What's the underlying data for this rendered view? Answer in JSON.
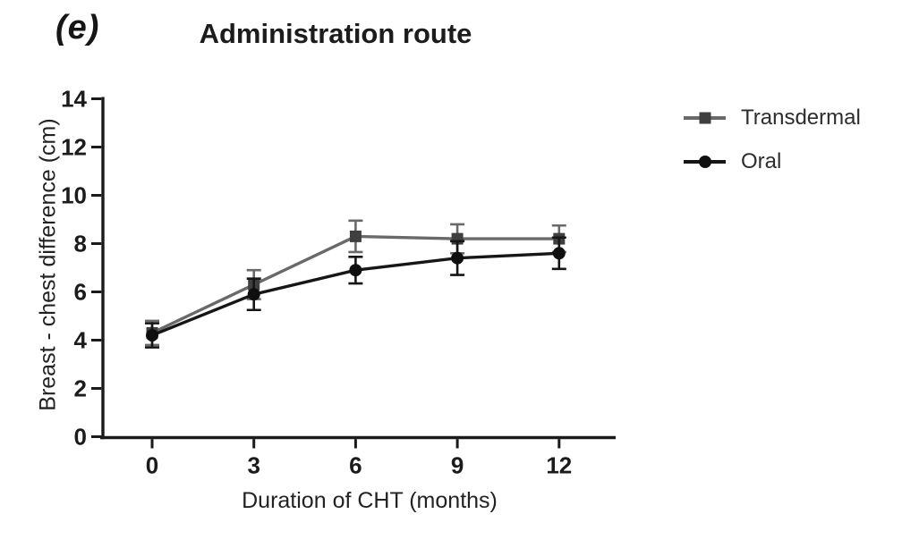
{
  "panel_label": "(e)",
  "chart_data": {
    "type": "line",
    "title": "Administration route",
    "xlabel": "Duration of CHT (months)",
    "ylabel": "Breast - chest difference (cm)",
    "x": [
      0,
      3,
      6,
      9,
      12
    ],
    "xticks": [
      "0",
      "3",
      "6",
      "9",
      "12"
    ],
    "yticks": [
      0,
      2,
      4,
      6,
      8,
      10,
      12,
      14
    ],
    "xlim": [
      0,
      12
    ],
    "ylim": [
      0,
      14
    ],
    "grid": false,
    "error_bars": true,
    "legend_position": "right-outside",
    "axis_color": "#1a1a1a",
    "series": [
      {
        "name": "Transdermal",
        "marker": "square",
        "line_color": "#696969",
        "marker_color": "#3f3f3f",
        "values": [
          4.3,
          6.3,
          8.3,
          8.2,
          8.2
        ],
        "errors": [
          0.5,
          0.6,
          0.65,
          0.6,
          0.55
        ]
      },
      {
        "name": "Oral",
        "marker": "circle",
        "line_color": "#161616",
        "marker_color": "#0f0f0f",
        "values": [
          4.2,
          5.9,
          6.9,
          7.4,
          7.6
        ],
        "errors": [
          0.5,
          0.65,
          0.55,
          0.7,
          0.65
        ]
      }
    ]
  }
}
